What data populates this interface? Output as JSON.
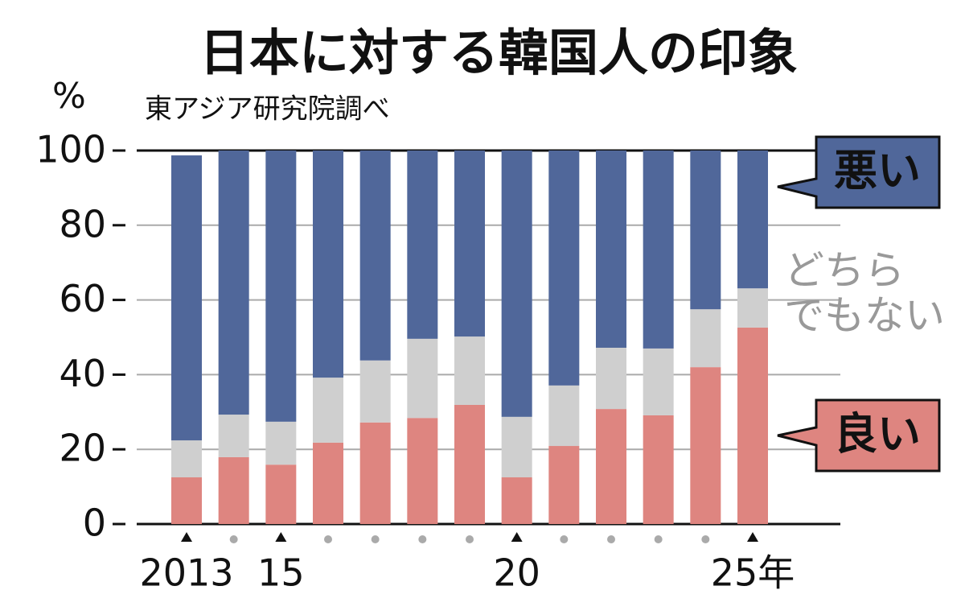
{
  "chart_data": {
    "type": "stacked-bar",
    "title": "日本に対する韓国人の印象",
    "subtitle": "東アジア研究院調べ",
    "y_unit": "%",
    "categories": [
      "2013",
      null,
      "15",
      null,
      null,
      null,
      null,
      "20",
      null,
      null,
      null,
      null,
      "25年"
    ],
    "series": [
      {
        "name": "良い",
        "color": "#de8580",
        "values": [
          12.5,
          17.9,
          15.9,
          21.8,
          27.2,
          28.4,
          31.9,
          12.5,
          20.9,
          30.8,
          29.1,
          42.0,
          52.6
        ]
      },
      {
        "name": "どちら\nでもない",
        "color": "#cfcfcf",
        "values": [
          9.9,
          11.4,
          11.5,
          17.4,
          16.6,
          21.2,
          18.3,
          16.2,
          16.2,
          16.4,
          17.9,
          15.5,
          10.5
        ]
      },
      {
        "name": "悪い",
        "color": "#50679a",
        "values": [
          76.3,
          70.7,
          72.6,
          60.8,
          56.2,
          50.4,
          49.8,
          71.3,
          62.9,
          52.8,
          53.0,
          42.5,
          36.9
        ]
      }
    ],
    "ylim": [
      0,
      100
    ],
    "yticks": [
      0,
      20,
      40,
      60,
      80,
      100
    ],
    "grid": true
  }
}
